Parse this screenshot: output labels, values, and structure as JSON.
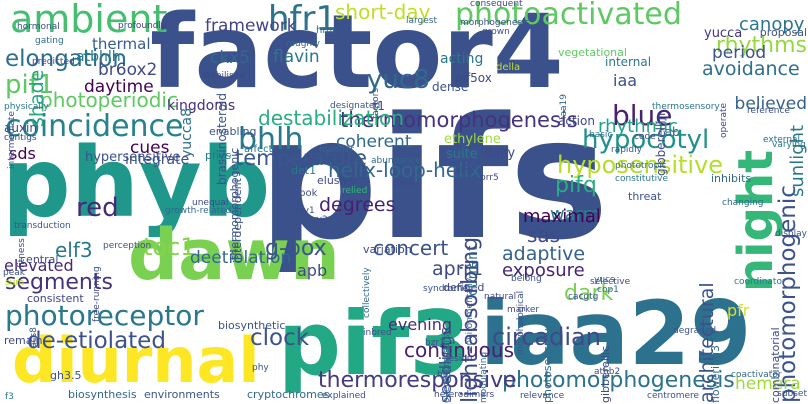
{
  "words": [
    {
      "text": "factor4",
      "color": "#3b518b",
      "vertical": false
    },
    {
      "text": "pifs",
      "color": "#3b518b",
      "vertical": false
    },
    {
      "text": "phyb",
      "color": "#1f978b",
      "vertical": false
    },
    {
      "text": "pif3",
      "color": "#22a884",
      "vertical": false
    },
    {
      "text": "iaa29",
      "color": "#2c728e",
      "vertical": false
    },
    {
      "text": "dawn",
      "color": "#7ad151",
      "vertical": false
    },
    {
      "text": "diurnal",
      "color": "#fde725",
      "vertical": false
    },
    {
      "text": "night",
      "color": "#35b779",
      "vertical": true
    },
    {
      "text": "ambient",
      "color": "#44bf70",
      "vertical": false
    },
    {
      "text": "photoactivated",
      "color": "#5ec962",
      "vertical": false
    },
    {
      "text": "hfr1",
      "color": "#2c728e",
      "vertical": false
    },
    {
      "text": "short-day",
      "color": "#bddf26",
      "vertical": false
    },
    {
      "text": "photoreceptor",
      "color": "#2a788e",
      "vertical": false
    },
    {
      "text": "coincidence",
      "color": "#26828e",
      "vertical": false
    },
    {
      "text": "thermomorphogenesis",
      "color": "#46327e",
      "vertical": false
    },
    {
      "text": "photomorphogenesis",
      "color": "#2c728e",
      "vertical": false
    },
    {
      "text": "circadian",
      "color": "#3e4989",
      "vertical": false
    },
    {
      "text": "hyposensitive",
      "color": "#b5de2b",
      "vertical": false
    },
    {
      "text": "hypocotyl",
      "color": "#21918c",
      "vertical": false
    },
    {
      "text": "de-etiolated",
      "color": "#3b528b",
      "vertical": false
    },
    {
      "text": "thermoresponsive",
      "color": "#443a83",
      "vertical": false
    },
    {
      "text": "continuous",
      "color": "#481f70",
      "vertical": false
    },
    {
      "text": "segments",
      "color": "#46337f",
      "vertical": false
    },
    {
      "text": "elongation",
      "color": "#2d708e",
      "vertical": false
    },
    {
      "text": "photoperiodic",
      "color": "#5ec962",
      "vertical": false
    },
    {
      "text": "temperature",
      "color": "#38588c",
      "vertical": false
    },
    {
      "text": "destabilization",
      "color": "#28ae80",
      "vertical": false
    },
    {
      "text": "helix-loop-helix",
      "color": "#31688e",
      "vertical": false
    },
    {
      "text": "photomorphogenic",
      "color": "#3b528b",
      "vertical": true
    },
    {
      "text": "rhythms",
      "color": "#95d840",
      "vertical": false
    },
    {
      "text": "avoidance",
      "color": "#2d708e",
      "vertical": false
    },
    {
      "text": "blue",
      "color": "#482374",
      "vertical": false
    },
    {
      "text": "bhlh",
      "color": "#2a788e",
      "vertical": false
    },
    {
      "text": "red",
      "color": "#482878",
      "vertical": false
    },
    {
      "text": "clock",
      "color": "#3b528b",
      "vertical": false
    },
    {
      "text": "dark",
      "color": "#7ad151",
      "vertical": false
    },
    {
      "text": "yuc8",
      "color": "#31688e",
      "vertical": false
    },
    {
      "text": "pif1",
      "color": "#5ec962",
      "vertical": false
    },
    {
      "text": "shade",
      "color": "#22a884",
      "vertical": true
    },
    {
      "text": "elf3",
      "color": "#2a788e",
      "vertical": false
    },
    {
      "text": "toc1",
      "color": "#84d44b",
      "vertical": false
    },
    {
      "text": "deetiolation",
      "color": "#31688e",
      "vertical": false
    },
    {
      "text": "elevated",
      "color": "#482878",
      "vertical": false
    },
    {
      "text": "apb",
      "color": "#3e4989",
      "vertical": false
    },
    {
      "text": "g-box",
      "color": "#39558c",
      "vertical": false
    },
    {
      "text": "evening",
      "color": "#472d7b",
      "vertical": false
    },
    {
      "text": "degrees",
      "color": "#481f70",
      "vertical": false
    },
    {
      "text": "pifq",
      "color": "#27ad81",
      "vertical": false
    },
    {
      "text": "adaptive",
      "color": "#34618d",
      "vertical": false
    },
    {
      "text": "exposure",
      "color": "#482576",
      "vertical": false
    },
    {
      "text": "sas",
      "color": "#3e4989",
      "vertical": false
    },
    {
      "text": "warm",
      "color": "#25838e",
      "vertical": false
    },
    {
      "text": "maximal",
      "color": "#440154",
      "vertical": false
    },
    {
      "text": "rhythmic",
      "color": "#20a386",
      "vertical": false
    },
    {
      "text": "period",
      "color": "#3b528b",
      "vertical": false
    },
    {
      "text": "canopy",
      "color": "#2a768e",
      "vertical": false
    },
    {
      "text": "believed",
      "color": "#34618d",
      "vertical": false
    },
    {
      "text": "architectural",
      "color": "#3b528b",
      "vertical": true
    },
    {
      "text": "pfr",
      "color": "#d8e219",
      "vertical": false
    },
    {
      "text": "hemera",
      "color": "#a0da39",
      "vertical": false
    },
    {
      "text": "sunlight",
      "color": "#2a788e",
      "vertical": true
    },
    {
      "text": "ckx5",
      "color": "#31688e",
      "vertical": false
    },
    {
      "text": "br6ox2",
      "color": "#3e4a89",
      "vertical": false
    },
    {
      "text": "daytime",
      "color": "#440154",
      "vertical": false
    },
    {
      "text": "framework",
      "color": "#414487",
      "vertical": false
    },
    {
      "text": "thermal",
      "color": "#365d8d",
      "vertical": false
    },
    {
      "text": "atbhlh",
      "color": "#29798e",
      "vertical": false
    },
    {
      "text": "flavin",
      "color": "#2a788e",
      "vertical": false
    },
    {
      "text": "yucca8",
      "color": "#2e6f8e",
      "vertical": true
    },
    {
      "text": "coherent",
      "color": "#31688e",
      "vertical": false
    },
    {
      "text": "cues",
      "color": "#440154",
      "vertical": false
    },
    {
      "text": "integrate",
      "color": "#3d4e8a",
      "vertical": false
    },
    {
      "text": "hypersensitive",
      "color": "#3b528b",
      "vertical": false
    },
    {
      "text": "sds",
      "color": "#440154",
      "vertical": false
    },
    {
      "text": "auxin",
      "color": "#3e4989",
      "vertical": false
    },
    {
      "text": "enabling",
      "color": "#3b528b",
      "vertical": false
    },
    {
      "text": "kingdoms",
      "color": "#472f7d",
      "vertical": false
    },
    {
      "text": "iaa",
      "color": "#3b518b",
      "vertical": false
    },
    {
      "text": "internal",
      "color": "#2a788e",
      "vertical": false
    },
    {
      "text": "yucca",
      "color": "#46337f",
      "vertical": false
    },
    {
      "text": "proposal",
      "color": "#3b528b",
      "vertical": false
    },
    {
      "text": "vegetational",
      "color": "#5ec962",
      "vertical": false
    },
    {
      "text": "morphogenesis",
      "color": "#3b528b",
      "vertical": false
    },
    {
      "text": "grown",
      "color": "#3b528b",
      "vertical": false
    },
    {
      "text": "consequent",
      "color": "#3e4989",
      "vertical": false
    },
    {
      "text": "largest",
      "color": "#31688e",
      "vertical": false
    },
    {
      "text": "hmr",
      "color": "#31688e",
      "vertical": false
    },
    {
      "text": "roughly",
      "color": "#31688e",
      "vertical": false
    },
    {
      "text": "acting",
      "color": "#2a788e",
      "vertical": false
    },
    {
      "text": "della",
      "color": "#c2df23",
      "vertical": false
    },
    {
      "text": "dense",
      "color": "#3b528b",
      "vertical": false
    },
    {
      "text": "pif5ox",
      "color": "#3e4989",
      "vertical": false
    },
    {
      "text": "f1",
      "color": "#3e4989",
      "vertical": false
    },
    {
      "text": "action",
      "color": "#3e4989",
      "vertical": false
    },
    {
      "text": "gibberellin",
      "color": "#3e4989",
      "vertical": true
    },
    {
      "text": "cab",
      "color": "#31688e",
      "vertical": false
    },
    {
      "text": "external",
      "color": "#31688e",
      "vertical": false
    },
    {
      "text": "ethylene",
      "color": "#a0da39",
      "vertical": false
    },
    {
      "text": "daily",
      "color": "#3e4989",
      "vertical": false
    },
    {
      "text": "suite",
      "color": "#2a788e",
      "vertical": false
    },
    {
      "text": "basic",
      "color": "#2c728e",
      "vertical": false
    },
    {
      "text": "code",
      "color": "#3e4989",
      "vertical": false
    },
    {
      "text": "thermosensory",
      "color": "#2a788e",
      "vertical": false
    },
    {
      "text": "reference",
      "color": "#3b528b",
      "vertical": false
    },
    {
      "text": "varying",
      "color": "#2a788e",
      "vertical": false
    },
    {
      "text": "hormonal",
      "color": "#3b528b",
      "vertical": false
    },
    {
      "text": "profoundly",
      "color": "#414487",
      "vertical": false
    },
    {
      "text": "gating",
      "color": "#31688e",
      "vertical": false
    },
    {
      "text": "predicted",
      "color": "#3e4989",
      "vertical": false
    },
    {
      "text": "physically",
      "color": "#2a788e",
      "vertical": false
    },
    {
      "text": "contigs",
      "color": "#414487",
      "vertical": false
    },
    {
      "text": "stabilised",
      "color": "#414487",
      "vertical": false
    },
    {
      "text": "phys",
      "color": "#2a788e",
      "vertical": false
    },
    {
      "text": "affect",
      "color": "#2a788e",
      "vertical": false
    },
    {
      "text": "designated",
      "color": "#3b528b",
      "vertical": false
    },
    {
      "text": "factors",
      "color": "#3b528b",
      "vertical": true
    },
    {
      "text": "transduction",
      "color": "#3b528b",
      "vertical": false
    },
    {
      "text": "thermomorphogenic",
      "color": "#3b528b",
      "vertical": true
    },
    {
      "text": "det1",
      "color": "#2a788e",
      "vertical": false
    },
    {
      "text": "manner",
      "color": "#31688e",
      "vertical": false
    },
    {
      "text": "abundance",
      "color": "#31688e",
      "vertical": false
    },
    {
      "text": "ein3",
      "color": "#3e4989",
      "vertical": false
    },
    {
      "text": "rapidly",
      "color": "#3b528b",
      "vertical": false
    },
    {
      "text": "constitutive",
      "color": "#2a788e",
      "vertical": false
    },
    {
      "text": "phototropic",
      "color": "#31688e",
      "vertical": false
    },
    {
      "text": "inhibits",
      "color": "#31688e",
      "vertical": false
    },
    {
      "text": "display",
      "color": "#3b528b",
      "vertical": false
    },
    {
      "text": "interdependent",
      "color": "#3b528b",
      "vertical": true
    },
    {
      "text": "hook",
      "color": "#3b528b",
      "vertical": false
    },
    {
      "text": "relied",
      "color": "#35b779",
      "vertical": false
    },
    {
      "text": "elusive",
      "color": "#3e4989",
      "vertical": false
    },
    {
      "text": "phya",
      "color": "#3e4989",
      "vertical": false
    },
    {
      "text": "prr5",
      "color": "#3e4989",
      "vertical": false
    },
    {
      "text": "threat",
      "color": "#3b528b",
      "vertical": false
    },
    {
      "text": "changing",
      "color": "#31688e",
      "vertical": false
    },
    {
      "text": "unequal",
      "color": "#3e4989",
      "vertical": false
    },
    {
      "text": "growth-related",
      "color": "#31688e",
      "vertical": false
    },
    {
      "text": "cry1",
      "color": "#3e4989",
      "vertical": false
    },
    {
      "text": "cry2",
      "color": "#3b528b",
      "vertical": false
    },
    {
      "text": "perception",
      "color": "#3b528b",
      "vertical": false
    },
    {
      "text": "free-running",
      "color": "#3e4989",
      "vertical": true
    },
    {
      "text": "fitness",
      "color": "#3e4989",
      "vertical": true
    },
    {
      "text": "central",
      "color": "#3e4989",
      "vertical": false
    },
    {
      "text": "sum",
      "color": "#b5de2b",
      "vertical": false
    },
    {
      "text": "peak",
      "color": "#3b528b",
      "vertical": false
    },
    {
      "text": "consistent",
      "color": "#414487",
      "vertical": false
    },
    {
      "text": "biosynthetic",
      "color": "#3b528b",
      "vertical": false
    },
    {
      "text": "phy",
      "color": "#3b528b",
      "vertical": false
    },
    {
      "text": "acs8",
      "color": "#3b528b",
      "vertical": true
    },
    {
      "text": "remain",
      "color": "#3e4989",
      "vertical": false
    },
    {
      "text": "gh3.5",
      "color": "#3b528b",
      "vertical": false
    },
    {
      "text": "f3",
      "color": "#2a788e",
      "vertical": false
    },
    {
      "text": "biosynthesis",
      "color": "#31688e",
      "vertical": false
    },
    {
      "text": "environments",
      "color": "#3b528b",
      "vertical": false
    },
    {
      "text": "cryptochromes",
      "color": "#31688e",
      "vertical": false
    },
    {
      "text": "explained",
      "color": "#3b528b",
      "vertical": false
    },
    {
      "text": "heterodimers",
      "color": "#3e4989",
      "vertical": false
    },
    {
      "text": "relevance",
      "color": "#3e4989",
      "vertical": false
    },
    {
      "text": "centromere",
      "color": "#3b528b",
      "vertical": false
    },
    {
      "text": "coactivator",
      "color": "#31688e",
      "vertical": false
    },
    {
      "text": "subset",
      "color": "#3b528b",
      "vertical": false
    },
    {
      "text": "combinatorial",
      "color": "#3e4989",
      "vertical": true
    },
    {
      "text": "flowering3",
      "color": "#31688e",
      "vertical": true
    },
    {
      "text": "gibberellic",
      "color": "#3e4989",
      "vertical": true
    },
    {
      "text": "degraded",
      "color": "#3b528b",
      "vertical": false
    },
    {
      "text": "coordinator",
      "color": "#2a788e",
      "vertical": false
    },
    {
      "text": "photosensory",
      "color": "#31688e",
      "vertical": true
    },
    {
      "text": "athb2",
      "color": "#3e4989",
      "vertical": false
    },
    {
      "text": "hlh",
      "color": "#3b528b",
      "vertical": false
    },
    {
      "text": "modulating",
      "color": "#31688e",
      "vertical": true
    },
    {
      "text": "lesion",
      "color": "#3e4989",
      "vertical": false
    },
    {
      "text": "overexpressors",
      "color": "#31688e",
      "vertical": true
    },
    {
      "text": "inbred",
      "color": "#3b528b",
      "vertical": false
    },
    {
      "text": "bzr1",
      "color": "#3b528b",
      "vertical": false
    },
    {
      "text": "marker",
      "color": "#3e4989",
      "vertical": false
    },
    {
      "text": "morphological",
      "color": "#3b528b",
      "vertical": true
    },
    {
      "text": "environmentally",
      "color": "#31688e",
      "vertical": true
    },
    {
      "text": "collectively",
      "color": "#31688e",
      "vertical": true
    },
    {
      "text": "natural",
      "color": "#3e4989",
      "vertical": false
    },
    {
      "text": "syndrome",
      "color": "#3b528b",
      "vertical": false
    },
    {
      "text": "defined",
      "color": "#3e4989",
      "vertical": false
    },
    {
      "text": "belong",
      "color": "#3b528b",
      "vertical": false
    },
    {
      "text": "yucs",
      "color": "#31688e",
      "vertical": false
    },
    {
      "text": "selective",
      "color": "#3e4989",
      "vertical": false
    },
    {
      "text": "cacgtg",
      "color": "#3b528b",
      "vertical": false
    },
    {
      "text": "cop1",
      "color": "#31688e",
      "vertical": false
    },
    {
      "text": "variation",
      "color": "#3e4989",
      "vertical": false
    },
    {
      "text": "concert",
      "color": "#3b528b",
      "vertical": false
    },
    {
      "text": "aprr1",
      "color": "#3e4989",
      "vertical": false
    },
    {
      "text": "current",
      "color": "#2a788e",
      "vertical": true
    },
    {
      "text": "seedlings",
      "color": "#3b528b",
      "vertical": true
    },
    {
      "text": "light-absorbing",
      "color": "#3e4989",
      "vertical": true
    },
    {
      "text": "brassinosteroid",
      "color": "#3b528b",
      "vertical": true
    },
    {
      "text": "iaa19",
      "color": "#31688e",
      "vertical": true
    },
    {
      "text": "operate",
      "color": "#3e4989",
      "vertical": true
    },
    {
      "text": "intermediate",
      "color": "#3b528b",
      "vertical": true
    },
    {
      "text": "ratio",
      "color": "#3e4989",
      "vertical": true
    },
    {
      "text": "adjusting",
      "color": "#3b528b",
      "vertical": true
    }
  ]
}
